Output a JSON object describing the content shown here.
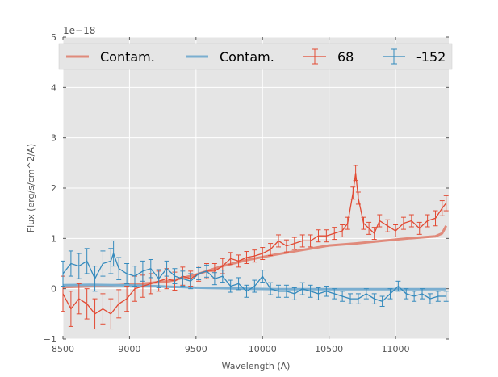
{
  "chart_data": {
    "type": "line",
    "xlabel": "Wavelength (A)",
    "ylabel": "Flux (erg/s/cm^2/A)",
    "offset_text": "1e−18",
    "xlim": [
      8500,
      11400
    ],
    "ylim": [
      -1,
      5
    ],
    "x_ticks": [
      8500,
      9000,
      9500,
      10000,
      10500,
      11000
    ],
    "x_tick_labels": [
      "8500",
      "9000",
      "9500",
      "10000",
      "10500",
      "11000"
    ],
    "y_ticks": [
      -1,
      0,
      1,
      2,
      3,
      4,
      5
    ],
    "y_tick_labels": [
      "−1",
      "0",
      "1",
      "2",
      "3",
      "4",
      "5"
    ],
    "grid": true,
    "legend_position": "top",
    "legend": [
      {
        "label": "Contam.",
        "kind": "line",
        "color": "#e08a7b"
      },
      {
        "label": "Contam.",
        "kind": "line",
        "color": "#7aaed0"
      },
      {
        "label": "68",
        "kind": "errorbar",
        "color": "#e24a33"
      },
      {
        "label": "-152",
        "kind": "errorbar",
        "color": "#348abd"
      }
    ],
    "series": [
      {
        "kind": "line",
        "color": "#e08a7b",
        "x": [
          8500,
          8700,
          8900,
          9100,
          9300,
          9500,
          9700,
          9900,
          10100,
          10300,
          10500,
          10700,
          10900,
          11100,
          11300,
          11350,
          11380
        ],
        "y": [
          0.03,
          0.05,
          0.07,
          0.1,
          0.15,
          0.28,
          0.45,
          0.58,
          0.68,
          0.77,
          0.86,
          0.9,
          0.95,
          1.0,
          1.04,
          1.1,
          1.25
        ]
      },
      {
        "kind": "line",
        "color": "#7aaed0",
        "x": [
          8500,
          8700,
          8900,
          9100,
          9300,
          9500,
          9700,
          9900,
          10100,
          10300,
          10500,
          10700,
          10900,
          11100,
          11380
        ],
        "y": [
          0.07,
          0.08,
          0.07,
          0.06,
          0.04,
          0.02,
          0.01,
          0.0,
          -0.01,
          -0.01,
          -0.01,
          -0.01,
          -0.01,
          -0.01,
          -0.01
        ]
      },
      {
        "kind": "errorbar",
        "name": "68",
        "color": "#e24a33",
        "x": [
          8500,
          8560,
          8620,
          8680,
          8740,
          8800,
          8860,
          8920,
          8980,
          9040,
          9100,
          9160,
          9220,
          9280,
          9340,
          9400,
          9460,
          9520,
          9580,
          9640,
          9700,
          9760,
          9820,
          9880,
          9940,
          10000,
          10060,
          10120,
          10180,
          10240,
          10300,
          10360,
          10420,
          10480,
          10540,
          10600,
          10640,
          10680,
          10700,
          10720,
          10760,
          10800,
          10840,
          10880,
          10940,
          11000,
          11060,
          11120,
          11180,
          11240,
          11300,
          11350,
          11380
        ],
        "y": [
          -0.1,
          -0.4,
          -0.2,
          -0.3,
          -0.5,
          -0.4,
          -0.5,
          -0.3,
          -0.2,
          0.0,
          0.05,
          0.1,
          0.15,
          0.2,
          0.15,
          0.25,
          0.2,
          0.3,
          0.35,
          0.35,
          0.45,
          0.6,
          0.55,
          0.62,
          0.65,
          0.7,
          0.78,
          0.95,
          0.85,
          0.9,
          0.95,
          0.95,
          1.05,
          1.05,
          1.1,
          1.15,
          1.3,
          1.9,
          2.3,
          1.8,
          1.3,
          1.2,
          1.1,
          1.35,
          1.25,
          1.15,
          1.3,
          1.35,
          1.2,
          1.35,
          1.4,
          1.6,
          1.7
        ],
        "err": [
          0.35,
          0.35,
          0.3,
          0.3,
          0.3,
          0.3,
          0.3,
          0.28,
          0.25,
          0.25,
          0.22,
          0.2,
          0.2,
          0.2,
          0.18,
          0.18,
          0.15,
          0.15,
          0.15,
          0.15,
          0.15,
          0.12,
          0.12,
          0.12,
          0.12,
          0.12,
          0.12,
          0.12,
          0.12,
          0.12,
          0.12,
          0.12,
          0.12,
          0.12,
          0.12,
          0.12,
          0.12,
          0.12,
          0.15,
          0.12,
          0.12,
          0.12,
          0.12,
          0.12,
          0.12,
          0.12,
          0.12,
          0.12,
          0.12,
          0.12,
          0.15,
          0.15,
          0.15
        ]
      },
      {
        "kind": "errorbar",
        "name": "-152",
        "color": "#348abd",
        "x": [
          8500,
          8560,
          8620,
          8680,
          8740,
          8800,
          8860,
          8880,
          8920,
          8980,
          9040,
          9100,
          9160,
          9220,
          9280,
          9340,
          9400,
          9460,
          9520,
          9580,
          9640,
          9700,
          9760,
          9820,
          9880,
          9940,
          10000,
          10060,
          10120,
          10180,
          10240,
          10300,
          10360,
          10420,
          10480,
          10540,
          10600,
          10660,
          10720,
          10780,
          10840,
          10900,
          10960,
          11020,
          11080,
          11140,
          11200,
          11260,
          11320,
          11380
        ],
        "y": [
          0.3,
          0.5,
          0.45,
          0.55,
          0.2,
          0.5,
          0.55,
          0.7,
          0.4,
          0.3,
          0.25,
          0.35,
          0.4,
          0.2,
          0.4,
          0.25,
          0.2,
          0.15,
          0.3,
          0.35,
          0.2,
          0.25,
          0.05,
          0.1,
          -0.05,
          0.05,
          0.25,
          0.0,
          -0.05,
          -0.05,
          -0.1,
          0.0,
          -0.05,
          -0.1,
          -0.05,
          -0.1,
          -0.15,
          -0.2,
          -0.2,
          -0.1,
          -0.2,
          -0.25,
          -0.1,
          0.05,
          -0.1,
          -0.15,
          -0.1,
          -0.2,
          -0.15,
          -0.15
        ],
        "err": [
          0.25,
          0.25,
          0.25,
          0.25,
          0.25,
          0.25,
          0.25,
          0.25,
          0.22,
          0.2,
          0.2,
          0.2,
          0.18,
          0.18,
          0.15,
          0.15,
          0.15,
          0.15,
          0.12,
          0.12,
          0.12,
          0.12,
          0.12,
          0.12,
          0.12,
          0.12,
          0.12,
          0.12,
          0.12,
          0.12,
          0.12,
          0.12,
          0.12,
          0.12,
          0.1,
          0.1,
          0.1,
          0.1,
          0.1,
          0.1,
          0.1,
          0.1,
          0.1,
          0.1,
          0.1,
          0.1,
          0.1,
          0.1,
          0.1,
          0.1
        ]
      }
    ]
  }
}
